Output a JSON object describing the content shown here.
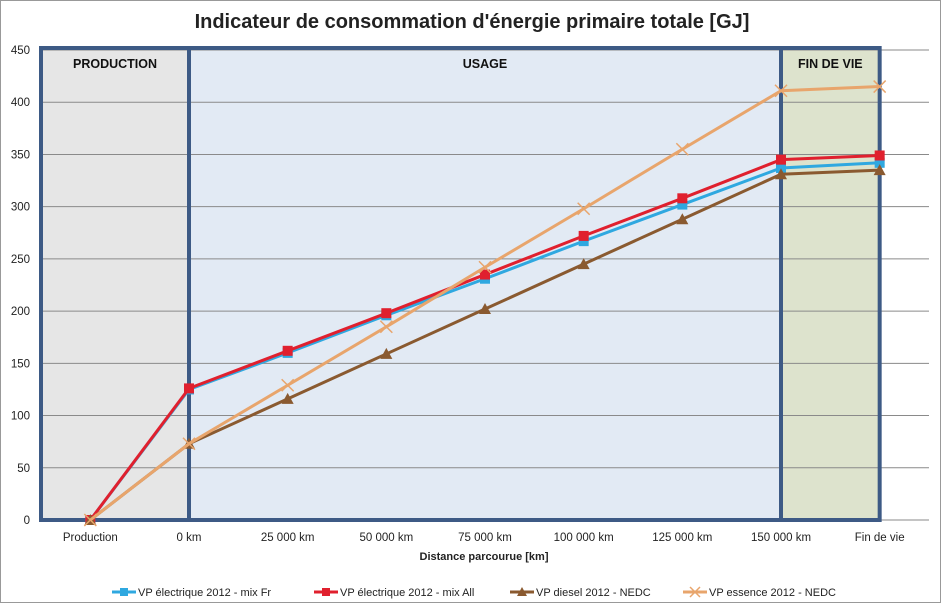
{
  "chart_data": {
    "type": "line",
    "title": "Indicateur de consommation d'énergie primaire totale [GJ]",
    "xlabel": "Distance parcourue [km]",
    "ylabel": "",
    "ylim": [
      0,
      450
    ],
    "yticks": [
      "0",
      "50",
      "100",
      "150",
      "200",
      "250",
      "300",
      "350",
      "400",
      "450"
    ],
    "grid": true,
    "legend_position": "bottom",
    "categories": [
      "Production",
      "0 km",
      "25 000 km",
      "50 000 km",
      "75 000 km",
      "100 000 km",
      "125 000 km",
      "150 000 km",
      "Fin de vie"
    ],
    "zones": [
      {
        "label": "PRODUCTION",
        "from": 0,
        "to": 1,
        "color": "#e6e6e6"
      },
      {
        "label": "USAGE",
        "from": 1,
        "to": 7,
        "color": "#e2eaf4"
      },
      {
        "label": "FIN DE VIE",
        "from": 7,
        "to": 8,
        "color": "#dde3cd"
      }
    ],
    "series": [
      {
        "name": "VP électrique 2012 - mix Fr",
        "color": "#2fa8e0",
        "marker": "square",
        "values": [
          0,
          125,
          160,
          196,
          231,
          267,
          302,
          337,
          342
        ]
      },
      {
        "name": "VP électrique 2012 - mix All",
        "color": "#e0202e",
        "marker": "square",
        "values": [
          0,
          126,
          162,
          198,
          235,
          272,
          308,
          345,
          349
        ]
      },
      {
        "name": "VP diesel 2012 - NEDC",
        "color": "#8a5a30",
        "marker": "triangle",
        "values": [
          0,
          73,
          116,
          159,
          202,
          245,
          288,
          331,
          335
        ]
      },
      {
        "name": "VP essence 2012 - NEDC",
        "color": "#e8a56c",
        "marker": "x",
        "values": [
          0,
          73,
          129,
          185,
          242,
          298,
          355,
          411,
          415
        ]
      }
    ]
  }
}
